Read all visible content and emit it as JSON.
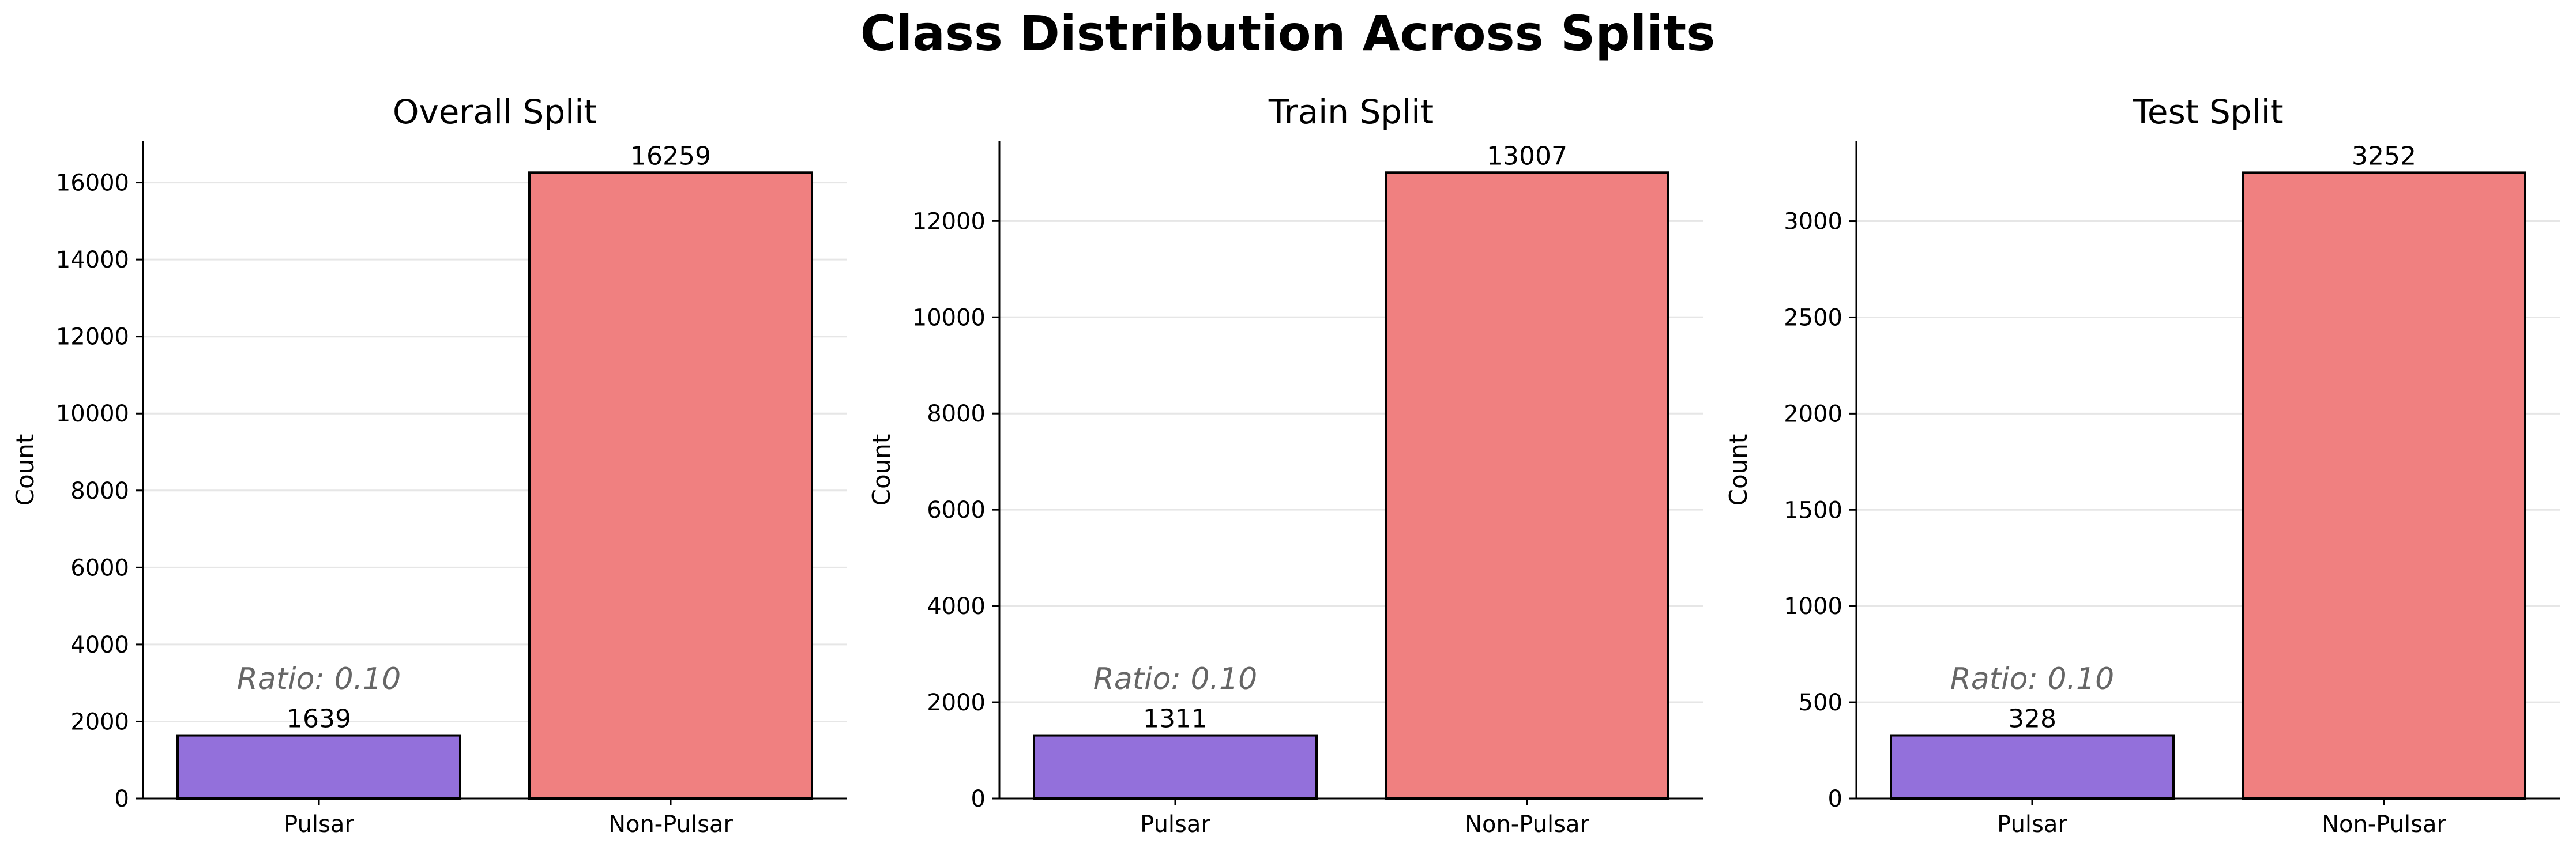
{
  "title": "Class Distribution Across Splits",
  "colors": {
    "pulsar": "#9370DB",
    "non_pulsar": "#F08080",
    "edge": "#000000",
    "grid": "#e6e6e6",
    "ratio_text": "#666666"
  },
  "chart_data": [
    {
      "type": "bar",
      "title": "Overall Split",
      "categories": [
        "Pulsar",
        "Non-Pulsar"
      ],
      "values": [
        1639,
        16259
      ],
      "value_labels": [
        "1639",
        "16259"
      ],
      "ylabel": "Count",
      "ylim": [
        0,
        17072
      ],
      "yticks": [
        0,
        2000,
        4000,
        6000,
        8000,
        10000,
        12000,
        14000,
        16000
      ],
      "annotation": "Ratio: 0.10",
      "grid": "y",
      "legend": "none"
    },
    {
      "type": "bar",
      "title": "Train Split",
      "categories": [
        "Pulsar",
        "Non-Pulsar"
      ],
      "values": [
        1311,
        13007
      ],
      "value_labels": [
        "1311",
        "13007"
      ],
      "ylabel": "Count",
      "ylim": [
        0,
        13657
      ],
      "yticks": [
        0,
        2000,
        4000,
        6000,
        8000,
        10000,
        12000
      ],
      "annotation": "Ratio: 0.10",
      "grid": "y",
      "legend": "none"
    },
    {
      "type": "bar",
      "title": "Test Split",
      "categories": [
        "Pulsar",
        "Non-Pulsar"
      ],
      "values": [
        328,
        3252
      ],
      "value_labels": [
        "328",
        "3252"
      ],
      "ylabel": "Count",
      "ylim": [
        0,
        3415
      ],
      "yticks": [
        0,
        500,
        1000,
        1500,
        2000,
        2500,
        3000
      ],
      "annotation": "Ratio: 0.10",
      "grid": "y",
      "legend": "none"
    }
  ]
}
